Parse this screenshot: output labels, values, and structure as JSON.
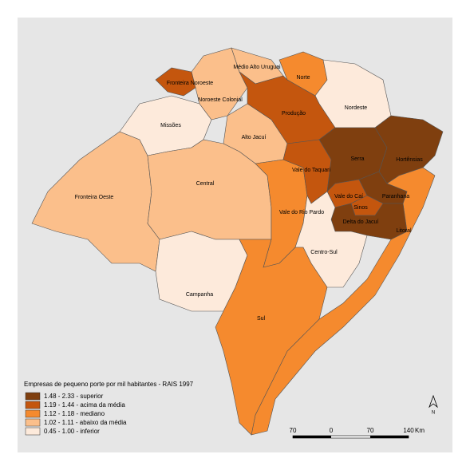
{
  "regions": [
    "Fronteira Noroeste",
    "Médio Alto Uruguai",
    "Norte",
    "Noroeste Colonial",
    "Nordeste",
    "Missões",
    "Produção",
    "Alto Jacuí",
    "Serra",
    "Hortênsias",
    "Vale do Taquari",
    "Central",
    "Fronteira Oeste",
    "Vale do Caí",
    "Paranhana",
    "Sinos",
    "Delta do Jacuí",
    "Vale do Rio Pardo",
    "Litoral",
    "Centro-Sul",
    "Campanha",
    "Sul"
  ],
  "legend": {
    "title": "Empresas de pequeno porte por mil habitantes - RAIS 1997",
    "items": [
      "1.48 - 2.33 - superior",
      "1.19 - 1.44 - acima da média",
      "1.12 - 1.18 - mediano",
      "1.02 - 1.11 - abaixo da média",
      "0.45 - 1.00 - inferior"
    ]
  },
  "scale": {
    "labels": [
      70,
      0,
      70,
      140
    ],
    "unit": "Km"
  },
  "north": "N"
}
